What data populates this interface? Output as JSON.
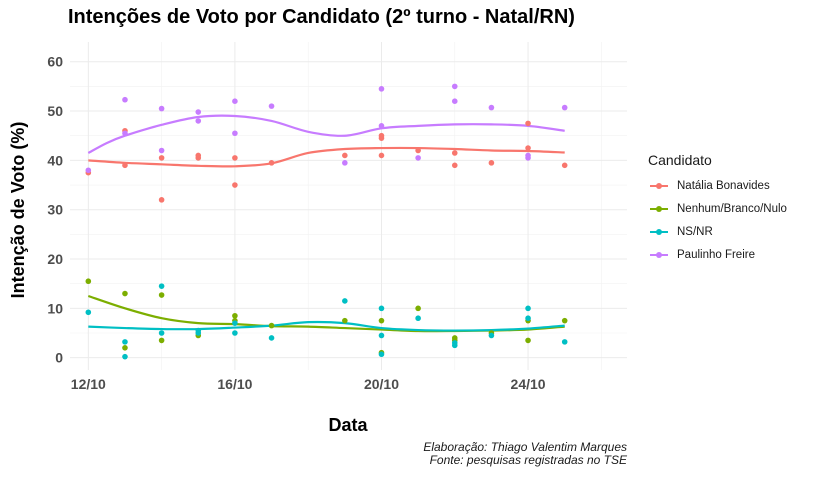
{
  "chart_data": {
    "type": "scatter",
    "title": "Intenções de Voto por Candidato (2º turno - Natal/RN)",
    "xlabel": "Data",
    "ylabel": "Intenção de Voto (%)",
    "x_ticks": [
      {
        "day": 12,
        "label": "12/10"
      },
      {
        "day": 16,
        "label": "16/10"
      },
      {
        "day": 20,
        "label": "20/10"
      },
      {
        "day": 24,
        "label": "24/10"
      }
    ],
    "xlim": [
      11.5,
      26.7
    ],
    "y_ticks": [
      0,
      10,
      20,
      30,
      40,
      50,
      60
    ],
    "ylim": [
      -2.5,
      64
    ],
    "grid": true,
    "legend_title": "Candidato",
    "legend_position": "right",
    "caption_lines": [
      "Elaboração: Thiago Valentim Marques",
      "Fonte: pesquisas registradas no TSE"
    ],
    "series": [
      {
        "name": "Natália Bonavides",
        "color": "#F8766D",
        "points": [
          [
            12,
            37.5
          ],
          [
            13,
            46
          ],
          [
            13,
            39
          ],
          [
            14,
            40.5
          ],
          [
            14,
            32
          ],
          [
            15,
            41
          ],
          [
            15,
            40.5
          ],
          [
            16,
            40.5
          ],
          [
            16,
            35
          ],
          [
            17,
            39.5
          ],
          [
            19,
            41
          ],
          [
            20,
            45
          ],
          [
            20,
            44.5
          ],
          [
            20,
            41
          ],
          [
            21,
            42
          ],
          [
            22,
            39
          ],
          [
            22,
            41.5
          ],
          [
            23,
            39.5
          ],
          [
            24,
            42.5
          ],
          [
            24,
            47.5
          ],
          [
            25,
            39
          ]
        ],
        "trend": [
          [
            12,
            40
          ],
          [
            13,
            39.5
          ],
          [
            14,
            39.2
          ],
          [
            15,
            38.9
          ],
          [
            16,
            38.8
          ],
          [
            17,
            39.4
          ],
          [
            18,
            41.5
          ],
          [
            19,
            42.3
          ],
          [
            20,
            42.5
          ],
          [
            21,
            42.5
          ],
          [
            22,
            42.3
          ],
          [
            23,
            42
          ],
          [
            24,
            41.9
          ],
          [
            25,
            41.6
          ]
        ]
      },
      {
        "name": "Nenhum/Branco/Nulo",
        "color": "#7CAE00",
        "points": [
          [
            12,
            15.5
          ],
          [
            13,
            13
          ],
          [
            13,
            2
          ],
          [
            14,
            12.7
          ],
          [
            14,
            3.5
          ],
          [
            15,
            4.5
          ],
          [
            16,
            8.5
          ],
          [
            16,
            7.5
          ],
          [
            17,
            6.5
          ],
          [
            19,
            7.5
          ],
          [
            20,
            7.5
          ],
          [
            20,
            1
          ],
          [
            21,
            10
          ],
          [
            22,
            3.5
          ],
          [
            22,
            4
          ],
          [
            23,
            5
          ],
          [
            24,
            7.5
          ],
          [
            24,
            3.5
          ],
          [
            25,
            7.5
          ]
        ],
        "trend": [
          [
            12,
            12.5
          ],
          [
            13,
            10
          ],
          [
            14,
            8
          ],
          [
            15,
            7
          ],
          [
            16,
            6.8
          ],
          [
            17,
            6.4
          ],
          [
            18,
            6.3
          ],
          [
            19,
            6
          ],
          [
            20,
            5.7
          ],
          [
            21,
            5.4
          ],
          [
            22,
            5.4
          ],
          [
            23,
            5.5
          ],
          [
            24,
            5.7
          ],
          [
            25,
            6.3
          ]
        ]
      },
      {
        "name": "NS/NR",
        "color": "#00BFC4",
        "points": [
          [
            12,
            9.2
          ],
          [
            13,
            3.2
          ],
          [
            13,
            0.2
          ],
          [
            14,
            14.5
          ],
          [
            14,
            5
          ],
          [
            15,
            5.5
          ],
          [
            15,
            5
          ],
          [
            16,
            5
          ],
          [
            16,
            7
          ],
          [
            17,
            4
          ],
          [
            19,
            11.5
          ],
          [
            20,
            10
          ],
          [
            20,
            4.5
          ],
          [
            20,
            0.7
          ],
          [
            21,
            8
          ],
          [
            22,
            2.5
          ],
          [
            22,
            3
          ],
          [
            23,
            4.5
          ],
          [
            24,
            10
          ],
          [
            24,
            8
          ],
          [
            25,
            3.2
          ]
        ],
        "trend": [
          [
            12,
            6.3
          ],
          [
            13,
            6
          ],
          [
            14,
            5.8
          ],
          [
            15,
            5.8
          ],
          [
            16,
            6.1
          ],
          [
            17,
            6.5
          ],
          [
            18,
            7.2
          ],
          [
            19,
            7
          ],
          [
            20,
            6
          ],
          [
            21,
            5.6
          ],
          [
            22,
            5.5
          ],
          [
            23,
            5.6
          ],
          [
            24,
            5.9
          ],
          [
            25,
            6.5
          ]
        ]
      },
      {
        "name": "Paulinho Freire",
        "color": "#C77CFF",
        "points": [
          [
            12,
            38
          ],
          [
            13,
            52.3
          ],
          [
            13,
            45.5
          ],
          [
            14,
            50.5
          ],
          [
            14,
            42
          ],
          [
            15,
            49.8
          ],
          [
            15,
            48
          ],
          [
            16,
            52
          ],
          [
            16,
            45.5
          ],
          [
            17,
            51
          ],
          [
            19,
            39.5
          ],
          [
            20,
            54.5
          ],
          [
            20,
            47
          ],
          [
            21,
            40.5
          ],
          [
            22,
            55
          ],
          [
            22,
            52
          ],
          [
            23,
            50.7
          ],
          [
            24,
            41
          ],
          [
            24,
            40.5
          ],
          [
            25,
            50.7
          ]
        ],
        "trend": [
          [
            12,
            41.5
          ],
          [
            12.5,
            43.5
          ],
          [
            13,
            45
          ],
          [
            14,
            47.2
          ],
          [
            15,
            48.8
          ],
          [
            16,
            49
          ],
          [
            17,
            48
          ],
          [
            18,
            45.8
          ],
          [
            19,
            45
          ],
          [
            20,
            46.5
          ],
          [
            21,
            47
          ],
          [
            22,
            47.3
          ],
          [
            23,
            47.3
          ],
          [
            24,
            47
          ],
          [
            25,
            46
          ]
        ]
      }
    ]
  }
}
